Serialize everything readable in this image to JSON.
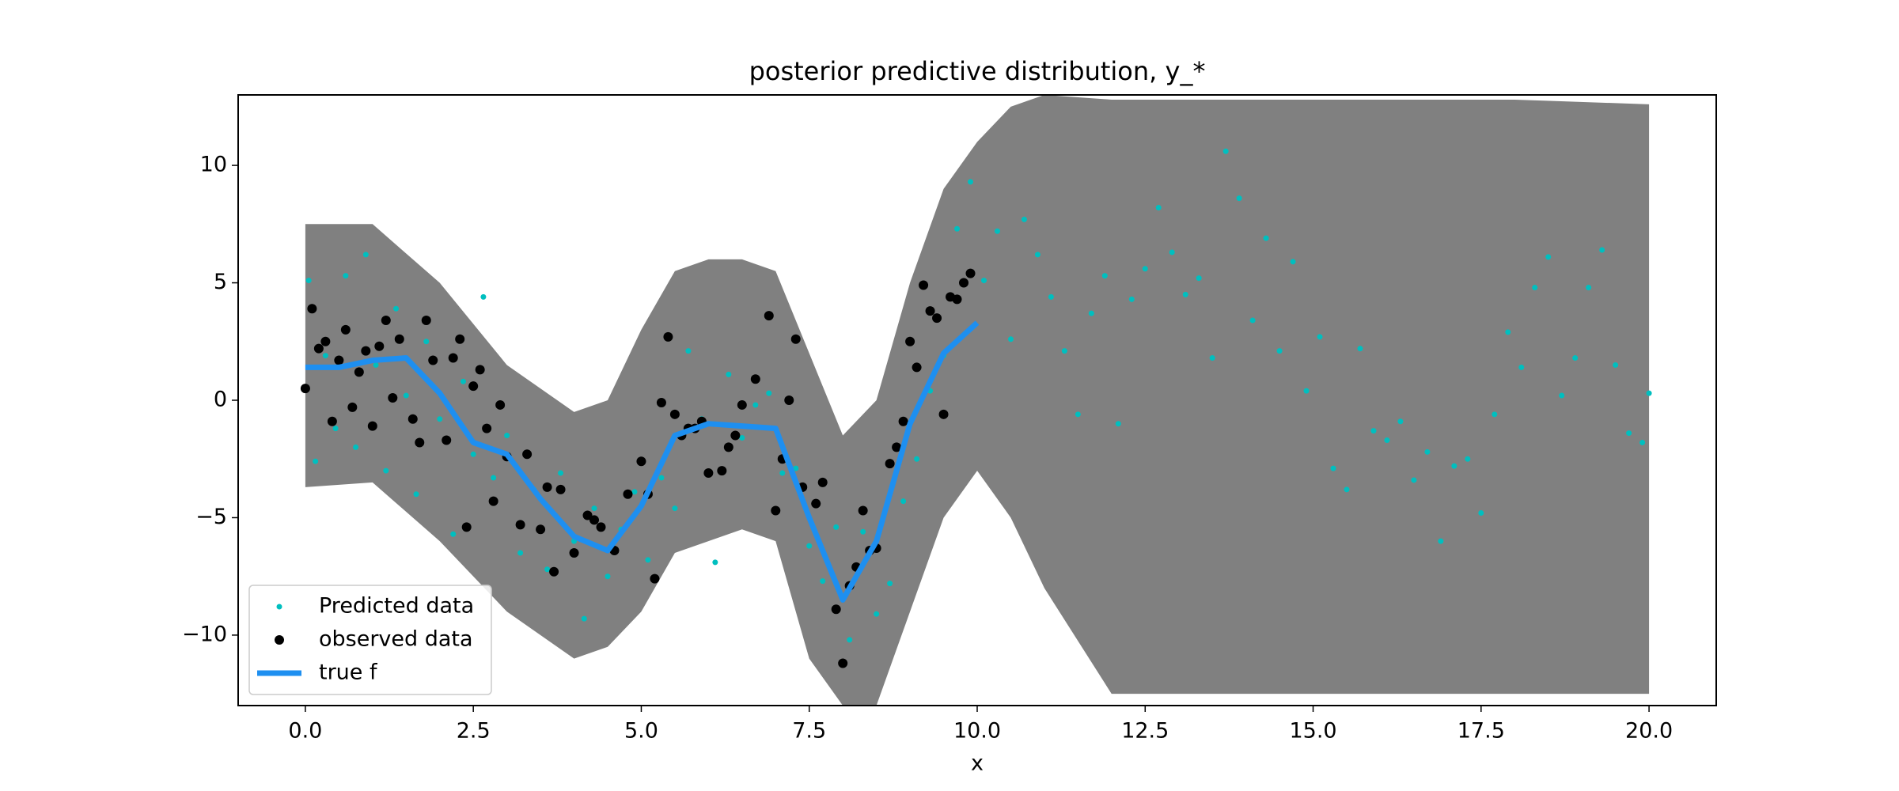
{
  "chart_data": {
    "type": "scatter",
    "title": "posterior predictive distribution, y_*",
    "x_label": "x",
    "xlim": [
      -1,
      21
    ],
    "ylim": [
      -13,
      13
    ],
    "xticks": [
      {
        "value": 0,
        "label": "0.0"
      },
      {
        "value": 2.5,
        "label": "2.5"
      },
      {
        "value": 5,
        "label": "5.0"
      },
      {
        "value": 7.5,
        "label": "7.5"
      },
      {
        "value": 10,
        "label": "10.0"
      },
      {
        "value": 12.5,
        "label": "12.5"
      },
      {
        "value": 15,
        "label": "15.0"
      },
      {
        "value": 17.5,
        "label": "17.5"
      },
      {
        "value": 20,
        "label": "20.0"
      }
    ],
    "yticks": [
      {
        "value": -10,
        "label": "−10"
      },
      {
        "value": -5,
        "label": "−5"
      },
      0,
      5,
      10
    ],
    "legend": "lower left",
    "band": {
      "color": "#808080",
      "x": [
        0,
        1,
        2,
        3,
        4,
        4.5,
        5,
        5.5,
        6,
        6.5,
        7,
        7.5,
        8,
        8.5,
        9,
        9.5,
        10,
        10.5,
        11,
        12,
        14,
        16,
        18,
        20
      ],
      "upper": [
        7.5,
        7.5,
        5,
        1.5,
        -0.5,
        0,
        3,
        5.5,
        6,
        6,
        5.5,
        2,
        -1.5,
        0,
        5,
        9,
        11,
        12.5,
        13,
        12.8,
        12.8,
        12.8,
        12.8,
        12.6
      ],
      "lower": [
        -3.7,
        -3.5,
        -6,
        -9,
        -11,
        -10.5,
        -9,
        -6.5,
        -6,
        -5.5,
        -6,
        -11,
        -13,
        -13,
        -9,
        -5,
        -3,
        -5,
        -8,
        -12.5,
        -12.5,
        -12.5,
        -12.5,
        -12.5
      ]
    },
    "series": [
      {
        "name": "Predicted data",
        "kind": "scatter",
        "color": "#00bfbf",
        "x": [
          0.05,
          0.15,
          0.3,
          0.45,
          0.6,
          0.75,
          0.9,
          1.05,
          1.2,
          1.35,
          1.5,
          1.65,
          1.8,
          2.0,
          2.2,
          2.35,
          2.5,
          2.65,
          2.8,
          3.0,
          3.2,
          3.4,
          3.6,
          3.8,
          4.0,
          4.15,
          4.3,
          4.5,
          4.7,
          4.9,
          5.1,
          5.3,
          5.5,
          5.7,
          5.9,
          6.1,
          6.3,
          6.5,
          6.7,
          6.9,
          7.1,
          7.3,
          7.5,
          7.7,
          7.9,
          8.1,
          8.3,
          8.5,
          8.7,
          8.9,
          9.1,
          9.3,
          9.5,
          9.7,
          9.9,
          10.1,
          10.3,
          10.5,
          10.7,
          10.9,
          11.1,
          11.3,
          11.5,
          11.7,
          11.9,
          12.1,
          12.3,
          12.5,
          12.7,
          12.9,
          13.1,
          13.3,
          13.5,
          13.7,
          13.9,
          14.1,
          14.3,
          14.5,
          14.7,
          14.9,
          15.1,
          15.3,
          15.5,
          15.7,
          15.9,
          16.1,
          16.3,
          16.5,
          16.7,
          16.9,
          17.1,
          17.3,
          17.5,
          17.7,
          17.9,
          18.1,
          18.3,
          18.5,
          18.7,
          18.9,
          19.1,
          19.3,
          19.5,
          19.7,
          19.9,
          20.0
        ],
        "values": [
          5.1,
          -2.6,
          1.9,
          -1.2,
          5.3,
          -2,
          6.2,
          1.5,
          -3,
          3.9,
          0.2,
          -4,
          2.5,
          -0.8,
          -5.7,
          0.8,
          -2.3,
          4.4,
          -3.3,
          -1.5,
          -6.5,
          -3.8,
          -7.2,
          -3.1,
          -6,
          -9.3,
          -4.6,
          -7.5,
          -5.5,
          -3.9,
          -6.8,
          -3.3,
          -4.6,
          2.1,
          -0.8,
          -6.9,
          1.1,
          -1.6,
          -0.2,
          0.3,
          -3.1,
          -2.9,
          -6.2,
          -7.7,
          -5.4,
          -10.2,
          -5.6,
          -9.1,
          -7.8,
          -4.3,
          -2.5,
          0.4,
          1.9,
          7.3,
          9.3,
          5.1,
          7.2,
          2.6,
          7.7,
          6.2,
          4.4,
          2.1,
          -0.6,
          3.7,
          5.3,
          -1,
          4.3,
          5.6,
          8.2,
          6.3,
          4.5,
          5.2,
          1.8,
          10.6,
          8.6,
          3.4,
          6.9,
          2.1,
          5.9,
          0.4,
          2.7,
          -2.9,
          -3.8,
          2.2,
          -1.3,
          -1.7,
          -0.9,
          -3.4,
          -2.2,
          -6,
          -2.8,
          -2.5,
          -4.8,
          -0.6,
          2.9,
          1.4,
          4.8,
          6.1,
          0.2,
          1.8,
          4.8,
          6.4,
          1.5,
          -1.4,
          -1.8,
          0.3
        ]
      },
      {
        "name": "observed data",
        "kind": "scatter",
        "color": "#000000",
        "x": [
          0,
          0.1,
          0.2,
          0.3,
          0.4,
          0.5,
          0.6,
          0.7,
          0.8,
          0.9,
          1.0,
          1.1,
          1.2,
          1.3,
          1.4,
          1.6,
          1.7,
          1.8,
          1.9,
          2.1,
          2.2,
          2.3,
          2.4,
          2.5,
          2.6,
          2.7,
          2.8,
          2.9,
          3.0,
          3.2,
          3.3,
          3.5,
          3.6,
          3.7,
          3.8,
          4.0,
          4.2,
          4.3,
          4.4,
          4.6,
          4.8,
          5.0,
          5.1,
          5.2,
          5.3,
          5.4,
          5.5,
          5.6,
          5.7,
          5.8,
          5.9,
          6.0,
          6.2,
          6.3,
          6.4,
          6.5,
          6.7,
          6.9,
          7.0,
          7.1,
          7.2,
          7.3,
          7.4,
          7.6,
          7.7,
          7.9,
          8.0,
          8.1,
          8.2,
          8.3,
          8.4,
          8.5,
          8.7,
          8.8,
          8.9,
          9.0,
          9.1,
          9.2,
          9.3,
          9.4,
          9.5,
          9.6,
          9.7,
          9.8,
          9.9
        ],
        "values": [
          0.5,
          3.9,
          2.2,
          2.5,
          -0.9,
          1.7,
          3,
          -0.3,
          1.2,
          2.1,
          -1.1,
          2.3,
          3.4,
          0.1,
          2.6,
          -0.8,
          -1.8,
          3.4,
          1.7,
          -1.7,
          1.8,
          2.6,
          -5.4,
          0.6,
          1.3,
          -1.2,
          -4.3,
          -0.2,
          -2.4,
          -5.3,
          -2.3,
          -5.5,
          -3.7,
          -7.3,
          -3.8,
          -6.5,
          -4.9,
          -5.1,
          -5.4,
          -6.4,
          -4,
          -2.6,
          -4,
          -7.6,
          -0.1,
          2.7,
          -0.6,
          -1.5,
          -1.2,
          -1.2,
          -0.9,
          -3.1,
          -3,
          -2,
          -1.5,
          -0.2,
          0.9,
          3.6,
          -4.7,
          -2.5,
          0,
          2.6,
          -3.7,
          -4.4,
          -3.5,
          -8.9,
          -11.2,
          -7.9,
          -7.1,
          -4.7,
          -6.4,
          -6.3,
          -2.7,
          -2,
          -0.9,
          2.5,
          1.4,
          4.9,
          3.8,
          3.5,
          -0.6,
          4.4,
          4.3,
          5,
          5.4
        ]
      },
      {
        "name": "true f",
        "kind": "line",
        "color": "#1e8ff0",
        "x": [
          0,
          0.5,
          1,
          1.5,
          2,
          2.5,
          3,
          3.5,
          4,
          4.5,
          5,
          5.5,
          6,
          6.5,
          7,
          7.5,
          8,
          8.5,
          9,
          9.5,
          10
        ],
        "values": [
          1.4,
          1.4,
          1.7,
          1.8,
          0.3,
          -1.8,
          -2.3,
          -4.2,
          -5.8,
          -6.4,
          -4.5,
          -1.5,
          -1,
          -1.1,
          -1.2,
          -5,
          -8.5,
          -6,
          -1,
          2,
          3.3
        ]
      }
    ]
  }
}
